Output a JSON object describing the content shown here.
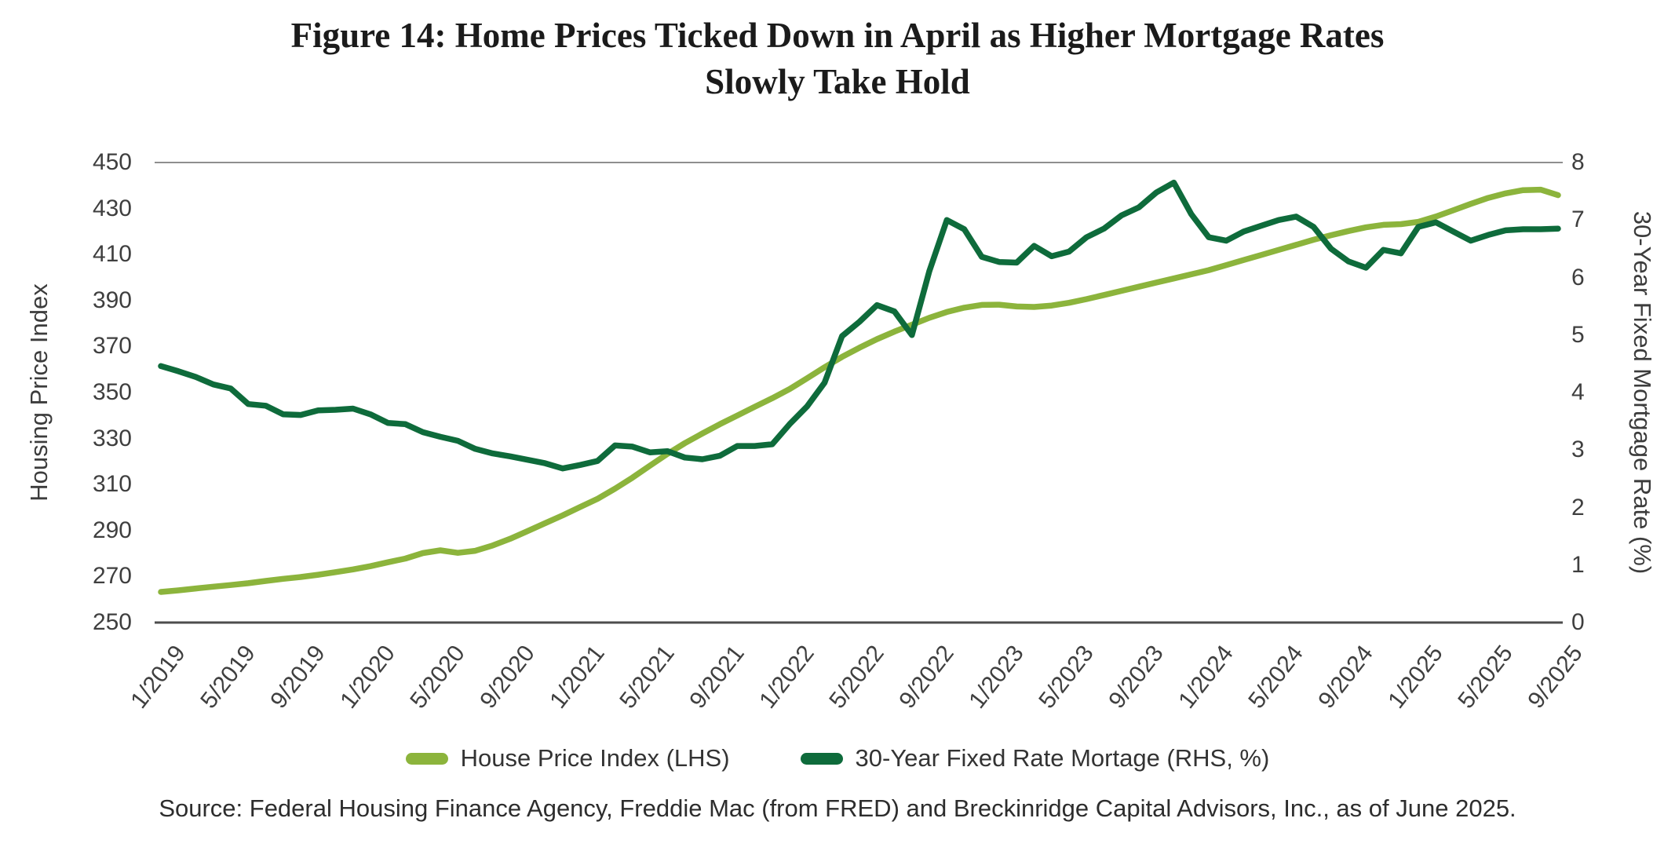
{
  "header": {
    "title_line1": "Figure 14: Home Prices Ticked Down in April as Higher Mortgage Rates",
    "title_line2": "Slowly Take Hold"
  },
  "chart_data": {
    "type": "line",
    "title": "Figure 14: Home Prices Ticked Down in April as Higher Mortgage Rates Slowly Take Hold",
    "grid": "top and bottom horizontal lines only",
    "legend_position": "bottom center",
    "x_tick_labels": [
      "1/2019",
      "5/2019",
      "9/2019",
      "1/2020",
      "5/2020",
      "9/2020",
      "1/2021",
      "5/2021",
      "9/2021",
      "1/2022",
      "5/2022",
      "9/2022",
      "1/2023",
      "5/2023",
      "9/2023",
      "1/2024",
      "5/2024",
      "9/2024",
      "1/2025",
      "5/2025",
      "9/2025"
    ],
    "left_axis": {
      "label": "Housing Price Index",
      "min": 250,
      "max": 450,
      "ticks": [
        450,
        430,
        410,
        390,
        370,
        350,
        330,
        310,
        290,
        270,
        250
      ]
    },
    "right_axis": {
      "label": "30-Year Fixed Mortgage Rate (%)",
      "min": 0,
      "max": 8,
      "ticks": [
        8,
        7,
        6,
        5,
        4,
        3,
        2,
        1,
        0
      ]
    },
    "series": [
      {
        "key": "hpi",
        "name": "House Price Index (LHS)",
        "axis": "left",
        "color": "#8CB43C",
        "start": "1/2019",
        "frequency": "monthly",
        "values": [
          263.3,
          264.0,
          264.8,
          265.6,
          266.3,
          267.1,
          268.1,
          269.0,
          269.8,
          270.8,
          271.9,
          273.1,
          274.5,
          276.2,
          277.8,
          280.2,
          281.4,
          280.3,
          281.2,
          283.5,
          286.4,
          289.8,
          293.2,
          296.6,
          300.2,
          303.8,
          308.2,
          313.0,
          318.2,
          323.3,
          328.0,
          332.2,
          336.2,
          340.0,
          343.8,
          347.5,
          351.5,
          356.2,
          361.0,
          365.5,
          369.5,
          373.2,
          376.5,
          379.5,
          382.5,
          385.0,
          386.9,
          388.1,
          388.2,
          387.4,
          387.2,
          387.8,
          389.0,
          390.6,
          392.4,
          394.2,
          396.0,
          397.8,
          399.6,
          401.4,
          403.2,
          405.4,
          407.6,
          409.8,
          412.0,
          414.2,
          416.4,
          418.4,
          420.2,
          421.8,
          422.9,
          423.2,
          424.2,
          426.5,
          429.2,
          432.0,
          434.6,
          436.6,
          438.0,
          438.2,
          435.8
        ]
      },
      {
        "key": "mortgage",
        "name": "30-Year Fixed Rate Mortage (RHS, %)",
        "axis": "right",
        "color": "#0E6B3B",
        "start": "1/2019",
        "frequency": "monthly",
        "values": [
          4.46,
          4.37,
          4.27,
          4.14,
          4.07,
          3.8,
          3.77,
          3.62,
          3.61,
          3.69,
          3.7,
          3.72,
          3.62,
          3.47,
          3.45,
          3.31,
          3.23,
          3.16,
          3.02,
          2.94,
          2.89,
          2.83,
          2.77,
          2.68,
          2.74,
          2.81,
          3.08,
          3.06,
          2.96,
          2.98,
          2.87,
          2.84,
          2.9,
          3.07,
          3.07,
          3.1,
          3.45,
          3.76,
          4.17,
          4.98,
          5.23,
          5.52,
          5.41,
          5.0,
          6.11,
          7.0,
          6.84,
          6.36,
          6.27,
          6.26,
          6.55,
          6.37,
          6.45,
          6.7,
          6.85,
          7.08,
          7.22,
          7.48,
          7.65,
          7.1,
          6.7,
          6.64,
          6.8,
          6.9,
          7.0,
          7.06,
          6.88,
          6.5,
          6.28,
          6.17,
          6.48,
          6.42,
          6.88,
          6.96,
          6.8,
          6.64,
          6.74,
          6.82,
          6.84,
          6.84,
          6.85
        ]
      }
    ]
  },
  "legend": {
    "items": [
      {
        "key": "hpi",
        "label": "House Price Index (LHS)",
        "color": "#8CB43C"
      },
      {
        "key": "mortgage",
        "label": "30-Year Fixed Rate Mortage (RHS, %)",
        "color": "#0E6B3B"
      }
    ]
  },
  "source": {
    "text": "Source: Federal Housing Finance Agency, Freddie Mac (from FRED) and Breckinridge Capital Advisors, Inc., as of June 2025."
  }
}
